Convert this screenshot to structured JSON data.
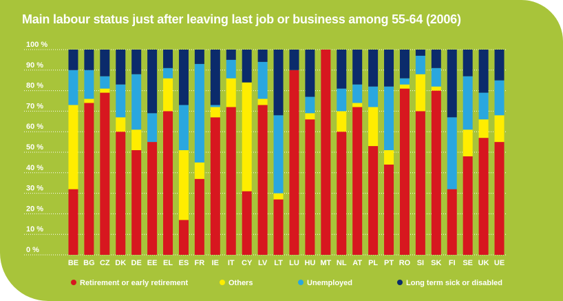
{
  "chart_data": {
    "type": "bar",
    "stacked": true,
    "title": "Main labour status just after leaving last job or business among 55-64 (2006)",
    "ylim": [
      0,
      100
    ],
    "yticks": [
      "0 %",
      "10 %",
      "20 %",
      "30 %",
      "40 %",
      "50 %",
      "60 %",
      "70 %",
      "80 %",
      "90 %",
      "100 %"
    ],
    "grid": true,
    "legend_position": "bottom",
    "categories": [
      "BE",
      "BG",
      "CZ",
      "DK",
      "DE",
      "EE",
      "EL",
      "ES",
      "FR",
      "IE",
      "IT",
      "CY",
      "LV",
      "LT",
      "LU",
      "HU",
      "MT",
      "NL",
      "AT",
      "PL",
      "PT",
      "RO",
      "SI",
      "SK",
      "FI",
      "SE",
      "UK",
      "UE"
    ],
    "series": [
      {
        "name": "Retirement or early retirement",
        "color": "#d7171f",
        "values": [
          32,
          74,
          79,
          60,
          51,
          55,
          70,
          17,
          37,
          67,
          72,
          31,
          73,
          27,
          90,
          66,
          100,
          60,
          72,
          53,
          44,
          81,
          70,
          80,
          32,
          48,
          57,
          55
        ]
      },
      {
        "name": "Others",
        "color": "#ffed00",
        "values": [
          41,
          2,
          2,
          7,
          10,
          0,
          16,
          34,
          8,
          5,
          14,
          53,
          3,
          3,
          0,
          3,
          0,
          10,
          2,
          19,
          7,
          2,
          18,
          2,
          0,
          13,
          9,
          13
        ]
      },
      {
        "name": "Unemployed",
        "color": "#2aa7df",
        "values": [
          17,
          14,
          6,
          16,
          27,
          14,
          5,
          22,
          48,
          1,
          9,
          0,
          18,
          38,
          0,
          8,
          0,
          11,
          9,
          10,
          31,
          3,
          9,
          9,
          35,
          26,
          13,
          17
        ]
      },
      {
        "name": "Long term sick or disabled",
        "color": "#0b2b6b",
        "values": [
          10,
          10,
          13,
          17,
          12,
          31,
          9,
          27,
          7,
          27,
          5,
          16,
          6,
          32,
          10,
          23,
          0,
          19,
          17,
          18,
          18,
          14,
          3,
          9,
          33,
          13,
          21,
          15
        ]
      }
    ]
  }
}
